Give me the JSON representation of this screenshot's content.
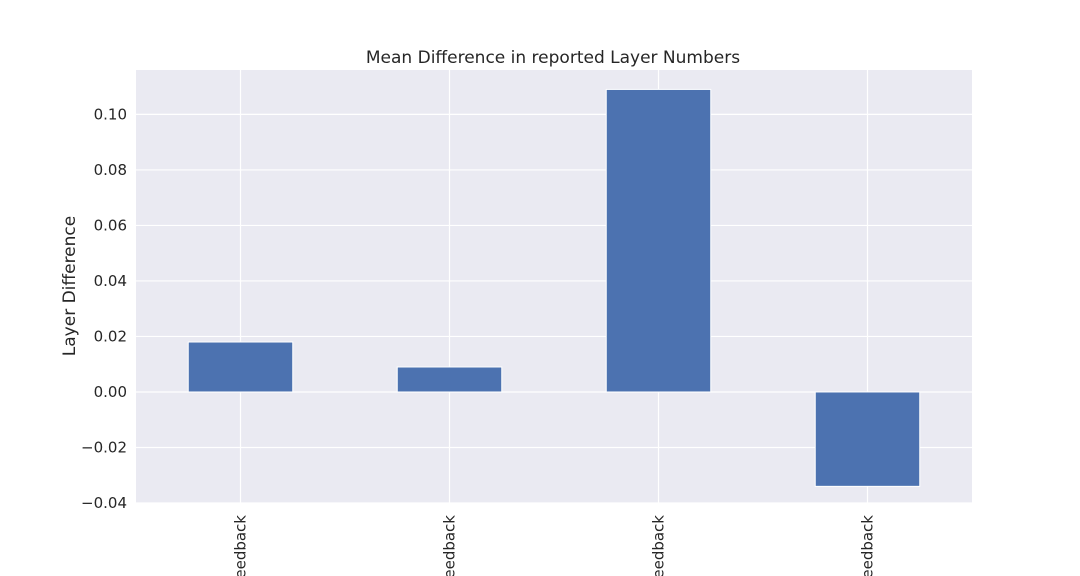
{
  "chart_data": {
    "type": "bar",
    "title": "Mean Difference in reported Layer Numbers",
    "xlabel": "",
    "ylabel": "Layer Difference",
    "categories": [
      "eedback",
      "eedback",
      "eedback",
      "eedback"
    ],
    "values": [
      0.018,
      0.009,
      0.109,
      -0.034
    ],
    "ylim": [
      -0.04,
      0.116
    ],
    "yticks": [
      "0.10",
      "0.08",
      "0.06",
      "0.04",
      "0.02",
      "0.00",
      "−0.02",
      "−0.04"
    ],
    "ytick_values": [
      0.1,
      0.08,
      0.06,
      0.04,
      0.02,
      0.0,
      -0.02,
      -0.04
    ],
    "grid": true,
    "legend": "none",
    "colors": {
      "bar": "#4c72b0",
      "plot_background": "#eaeaf2",
      "grid": "#ffffff"
    }
  }
}
